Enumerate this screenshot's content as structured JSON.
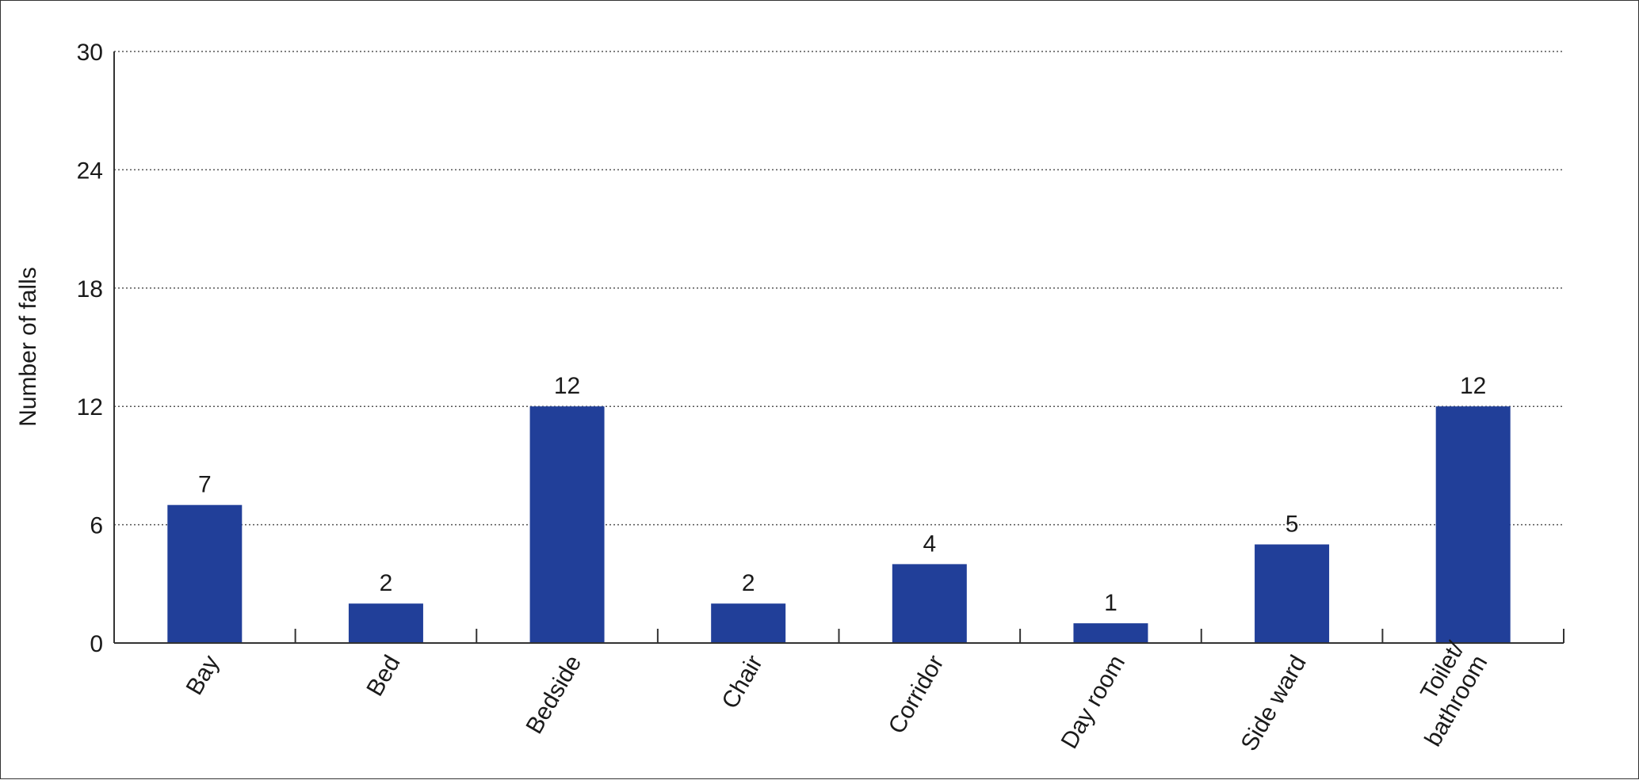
{
  "chart_data": {
    "type": "bar",
    "title": "",
    "xlabel": "",
    "ylabel": "Number of falls",
    "ylim": [
      0,
      30
    ],
    "yticks": [
      0,
      6,
      12,
      18,
      24,
      30
    ],
    "grid": true,
    "categories": [
      "Bay",
      "Bed",
      "Bedside",
      "Chair",
      "Corridor",
      "Day room",
      "Side ward",
      "Toilet/\nbathroom"
    ],
    "values": [
      7,
      2,
      12,
      2,
      4,
      1,
      5,
      12
    ],
    "data_labels": [
      "7",
      "2",
      "12",
      "2",
      "4",
      "1",
      "5",
      "12"
    ],
    "colors": {
      "bar": "#213f99",
      "grid": "#555555",
      "axis": "#333333",
      "text": "#1a1a1a"
    }
  }
}
